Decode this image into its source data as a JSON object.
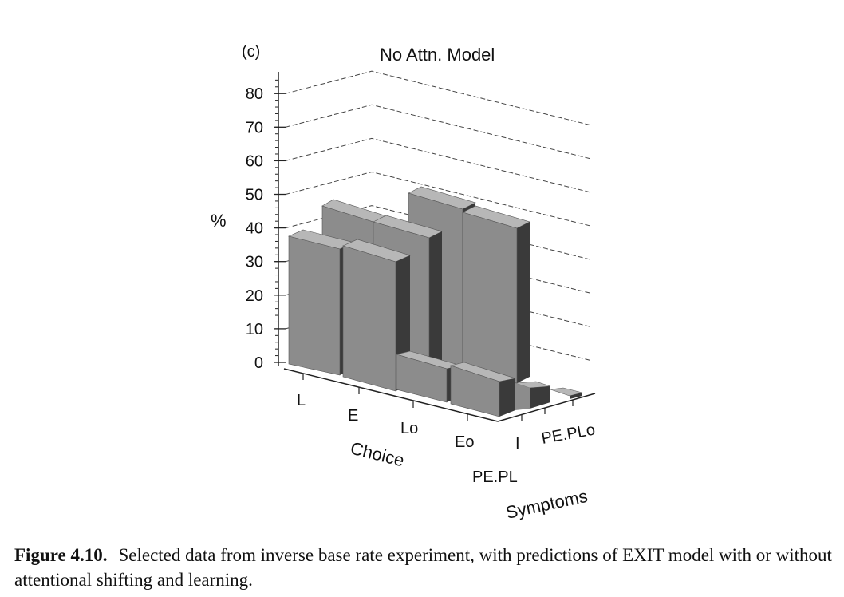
{
  "chart_data": {
    "type": "bar3d",
    "panel_label": "(c)",
    "title": "No Attn. Model",
    "ylabel": "%",
    "xlabel": "Choice",
    "zlabel": "Symptoms",
    "choice_labels": [
      "L",
      "E",
      "Lo",
      "Eo"
    ],
    "symptom_labels": [
      "I",
      "PE.PL",
      "PE.PLo"
    ],
    "yticks": [
      0,
      10,
      20,
      30,
      40,
      50,
      60,
      70,
      80
    ],
    "ylim": [
      0,
      85
    ],
    "series": [
      {
        "name": "I",
        "values": [
          40,
          40,
          12,
          8
        ]
      },
      {
        "name": "PE.PL",
        "values": [
          null,
          45,
          50,
          52
        ]
      },
      {
        "name": "PE.PLo",
        "values": [
          null,
          null,
          50,
          52
        ]
      }
    ],
    "grid": true
  },
  "caption": {
    "label": "Figure 4.10.",
    "text": "Selected data from inverse base rate experiment, with predictions of EXIT model with or without attentional shifting and learning."
  }
}
